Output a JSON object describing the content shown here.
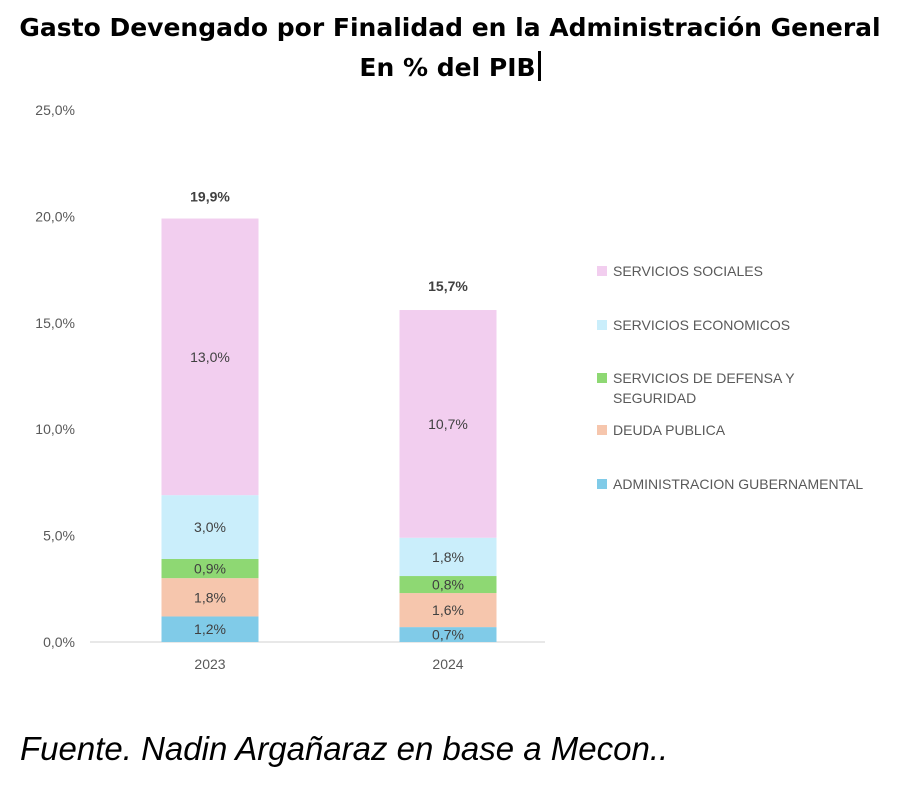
{
  "title": {
    "line1": "Gasto Devengado por Finalidad en la Administración General",
    "line2": "En % del PIB"
  },
  "source": "Fuente. Nadin Argañaraz en base a Mecon..",
  "chart_data": {
    "type": "bar",
    "stacked": true,
    "categories": [
      "2023",
      "2024"
    ],
    "series": [
      {
        "name": "ADMINISTRACION GUBERNAMENTAL",
        "values": [
          1.2,
          0.7
        ],
        "labels": [
          "1,2%",
          "0,7%"
        ],
        "color": "#80cbe8"
      },
      {
        "name": "DEUDA PUBLICA",
        "values": [
          1.8,
          1.6
        ],
        "labels": [
          "1,8%",
          "1,6%"
        ],
        "color": "#f6c6ad"
      },
      {
        "name": "SERVICIOS DE DEFENSA Y SEGURIDAD",
        "values": [
          0.9,
          0.8
        ],
        "labels": [
          "0,9%",
          "0,8%"
        ],
        "color": "#8ed873"
      },
      {
        "name": "SERVICIOS ECONOMICOS",
        "values": [
          3.0,
          1.8
        ],
        "labels": [
          "3,0%",
          "1,8%"
        ],
        "color": "#caeefb"
      },
      {
        "name": "SERVICIOS SOCIALES",
        "values": [
          13.0,
          10.7
        ],
        "labels": [
          "13,0%",
          "10,7%"
        ],
        "color": "#f2ceef"
      }
    ],
    "totals": [
      19.9,
      15.7
    ],
    "total_labels": [
      "19,9%",
      "15,7%"
    ],
    "yticks": [
      0,
      5,
      10,
      15,
      20,
      25
    ],
    "ytick_labels": [
      "0,0%",
      "5,0%",
      "10,0%",
      "15,0%",
      "20,0%",
      "25,0%"
    ],
    "ylim": [
      0,
      25
    ],
    "grid": false,
    "legend": {
      "position": "right",
      "order": [
        "SERVICIOS SOCIALES",
        "SERVICIOS ECONOMICOS",
        "SERVICIOS DE DEFENSA Y SEGURIDAD",
        "DEUDA PUBLICA",
        "ADMINISTRACION GUBERNAMENTAL"
      ],
      "lines": [
        [
          "SERVICIOS SOCIALES"
        ],
        [
          "SERVICIOS ECONOMICOS"
        ],
        [
          "SERVICIOS DE DEFENSA Y",
          "SEGURIDAD"
        ],
        [
          "DEUDA PUBLICA"
        ],
        [
          "ADMINISTRACION GUBERNAMENTAL"
        ]
      ]
    }
  }
}
